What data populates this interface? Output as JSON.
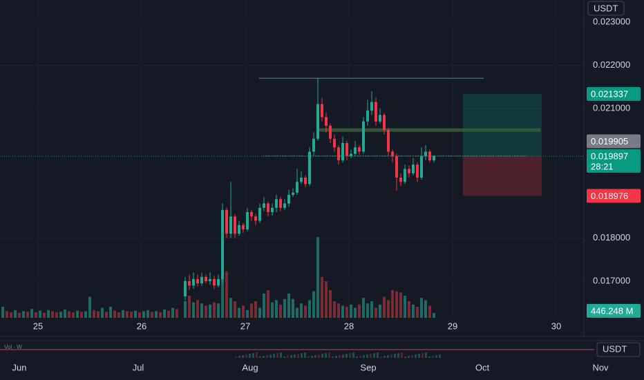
{
  "chart_data": {
    "type": "candlestick",
    "currency": "USDT",
    "xlim": [
      24.633,
      30.267
    ],
    "xticks": [
      25,
      26,
      27,
      28,
      29,
      30
    ],
    "ylim": [
      0.016152,
      0.023512
    ],
    "yticks": [
      {
        "value": 0.023,
        "label": "0.023000"
      },
      {
        "value": 0.022,
        "label": "0.022000"
      },
      {
        "value": 0.021,
        "label": "0.021000"
      },
      {
        "value": 0.018,
        "label": "0.018000"
      },
      {
        "value": 0.017,
        "label": "0.017000"
      }
    ],
    "up_color": "#22ab94",
    "down_color": "#f23645",
    "x": [
      26.42,
      26.46,
      26.5,
      26.54,
      26.58,
      26.62,
      26.66,
      26.7,
      26.74,
      26.78,
      26.82,
      26.86,
      26.9,
      26.94,
      26.98,
      27.02,
      27.06,
      27.1,
      27.14,
      27.18,
      27.22,
      27.26,
      27.3,
      27.34,
      27.38,
      27.42,
      27.46,
      27.5,
      27.54,
      27.58,
      27.62,
      27.66,
      27.7,
      27.74,
      27.78,
      27.82,
      27.86,
      27.9,
      27.94,
      27.98,
      28.02,
      28.06,
      28.1,
      28.14,
      28.18,
      28.22,
      28.26,
      28.3,
      28.34,
      28.38,
      28.42,
      28.46,
      28.5,
      28.54,
      28.58,
      28.62,
      28.66,
      28.7,
      28.74,
      28.78,
      28.82
    ],
    "open": [
      0.01665,
      0.017,
      0.0169,
      0.01705,
      0.01695,
      0.0171,
      0.017,
      0.01705,
      0.0169,
      0.01705,
      0.01865,
      0.0181,
      0.0185,
      0.0181,
      0.0183,
      0.0182,
      0.0186,
      0.0185,
      0.0184,
      0.0187,
      0.0188,
      0.0186,
      0.0187,
      0.0189,
      0.0187,
      0.0188,
      0.019,
      0.01905,
      0.0193,
      0.0194,
      0.01925,
      0.02,
      0.0203,
      0.0211,
      0.0208,
      0.0206,
      0.0203,
      0.0201,
      0.0198,
      0.0202,
      0.0199,
      0.01995,
      0.0201,
      0.02,
      0.0207,
      0.02095,
      0.02115,
      0.0207,
      0.02085,
      0.0205,
      0.02,
      0.0199,
      0.0194,
      0.0193,
      0.0196,
      0.0195,
      0.0197,
      0.0194,
      0.0199,
      0.02,
      0.0198
    ],
    "high": [
      0.0171,
      0.01715,
      0.0172,
      0.01715,
      0.0172,
      0.01715,
      0.0172,
      0.01712,
      0.01715,
      0.0188,
      0.0187,
      0.0193,
      0.01855,
      0.0184,
      0.01835,
      0.0187,
      0.01865,
      0.01855,
      0.0188,
      0.01895,
      0.01885,
      0.0188,
      0.019,
      0.01895,
      0.0189,
      0.01912,
      0.01915,
      0.0196,
      0.01955,
      0.01945,
      0.0201,
      0.02045,
      0.0217,
      0.02125,
      0.0209,
      0.02065,
      0.0204,
      0.02015,
      0.02035,
      0.02025,
      0.02005,
      0.02025,
      0.02015,
      0.0208,
      0.0212,
      0.0214,
      0.02125,
      0.021,
      0.0209,
      0.02055,
      0.02005,
      0.01995,
      0.0195,
      0.0197,
      0.01968,
      0.01985,
      0.01975,
      0.0201,
      0.02015,
      0.02005,
      0.01992
    ],
    "low": [
      0.01655,
      0.0168,
      0.01682,
      0.01688,
      0.0169,
      0.01695,
      0.01692,
      0.01682,
      0.01685,
      0.01695,
      0.018,
      0.018,
      0.018,
      0.01805,
      0.01812,
      0.01815,
      0.0184,
      0.0183,
      0.01835,
      0.01862,
      0.0185,
      0.01852,
      0.0186,
      0.01862,
      0.01865,
      0.01872,
      0.01895,
      0.019,
      0.01925,
      0.01918,
      0.0192,
      0.0199,
      0.02025,
      0.0207,
      0.02045,
      0.0202,
      0.02,
      0.0197,
      0.01975,
      0.0198,
      0.01985,
      0.0199,
      0.01992,
      0.01995,
      0.0206,
      0.02085,
      0.0206,
      0.02065,
      0.0204,
      0.0199,
      0.01975,
      0.0191,
      0.0192,
      0.01925,
      0.0194,
      0.01945,
      0.0193,
      0.01935,
      0.0198,
      0.01975,
      0.01975
    ],
    "close": [
      0.017,
      0.0169,
      0.01705,
      0.01695,
      0.0171,
      0.017,
      0.01705,
      0.0169,
      0.01705,
      0.01865,
      0.0181,
      0.0185,
      0.0181,
      0.0183,
      0.0182,
      0.0186,
      0.0185,
      0.0184,
      0.0187,
      0.0188,
      0.0186,
      0.0187,
      0.0189,
      0.0187,
      0.0188,
      0.019,
      0.01905,
      0.0193,
      0.0194,
      0.01925,
      0.02,
      0.0203,
      0.0211,
      0.0208,
      0.0206,
      0.0203,
      0.0201,
      0.0198,
      0.0202,
      0.0199,
      0.01995,
      0.0201,
      0.02,
      0.0207,
      0.02095,
      0.02115,
      0.0207,
      0.02085,
      0.0205,
      0.02,
      0.0199,
      0.0194,
      0.0193,
      0.0196,
      0.0195,
      0.0197,
      0.0194,
      0.0199,
      0.02,
      0.0198,
      0.019897
    ],
    "volume": {
      "vlim": [
        0,
        8000
      ],
      "values": [
        1500,
        2000,
        1400,
        1600,
        1300,
        1100,
        1200,
        1400,
        1300,
        5000,
        4200,
        1800,
        1500,
        900,
        1100,
        700,
        1300,
        1500,
        900,
        2200,
        2500,
        1400,
        1600,
        1200,
        1700,
        2200,
        1700,
        900,
        1300,
        1100,
        1600,
        2400,
        7300,
        3700,
        3300,
        2500,
        1500,
        1300,
        1100,
        1000,
        1200,
        900,
        1200,
        1800,
        1300,
        1500,
        900,
        1200,
        1900,
        1600,
        2500,
        2400,
        2300,
        2000,
        1500,
        1200,
        1000,
        1800,
        1600,
        1100,
        446.248
      ],
      "early_x": [
        24.66,
        24.7,
        24.74,
        24.78,
        24.82,
        24.86,
        24.9,
        24.94,
        24.98,
        25.02,
        25.06,
        25.1,
        25.14,
        25.18,
        25.22,
        25.26,
        25.3,
        25.34,
        25.38,
        25.42,
        25.46,
        25.5,
        25.54,
        25.58,
        25.62,
        25.66,
        25.7,
        25.74,
        25.78,
        25.82,
        25.86,
        25.9,
        25.94,
        25.98,
        26.02,
        26.06,
        26.1,
        26.14,
        26.18,
        26.22,
        26.26,
        26.3,
        26.34
      ],
      "early_values": [
        1000,
        600,
        500,
        700,
        450,
        600,
        550,
        800,
        500,
        650,
        450,
        700,
        600,
        500,
        550,
        750,
        600,
        500,
        650,
        550,
        600,
        1900,
        700,
        600,
        900,
        550,
        1000,
        650,
        500,
        700,
        600,
        550,
        650,
        500,
        600,
        700,
        550,
        600,
        500,
        750,
        650,
        900,
        800
      ],
      "last_value_label": "446.248 M",
      "up_color": "#1d6b62",
      "down_color": "#7a2c34"
    },
    "current": {
      "value": 0.019897,
      "label": "0.019897",
      "countdown": "28:21",
      "color": "#089981"
    },
    "position": {
      "x": [
        29.1,
        29.86
      ],
      "target": {
        "value": 0.021337,
        "label": "0.021337"
      },
      "entry": {
        "value": 0.019905,
        "label": "0.019905"
      },
      "stop": {
        "value": 0.018976,
        "label": "0.018976"
      },
      "profit_color": "#089981",
      "entry_color": "#787b86",
      "loss_color": "#f23645"
    },
    "drawings": [
      {
        "type": "hline",
        "price": 0.0217,
        "x": [
          27.13,
          29.3
        ],
        "color": "#2a9d8f"
      },
      {
        "type": "band",
        "price": [
          0.02046,
          0.02054
        ],
        "x": [
          27.69,
          29.85
        ],
        "color": "#3b5f3e"
      },
      {
        "type": "dotted",
        "price": 0.0199,
        "x": [
          27.17,
          29.71
        ],
        "color": "#26a69a"
      }
    ]
  },
  "navigator": {
    "indicator": "Vol · W",
    "currency": "USDT",
    "labels": [
      "Jun",
      "Jul",
      "Aug",
      "Sep",
      "Oct",
      "Nov"
    ]
  }
}
